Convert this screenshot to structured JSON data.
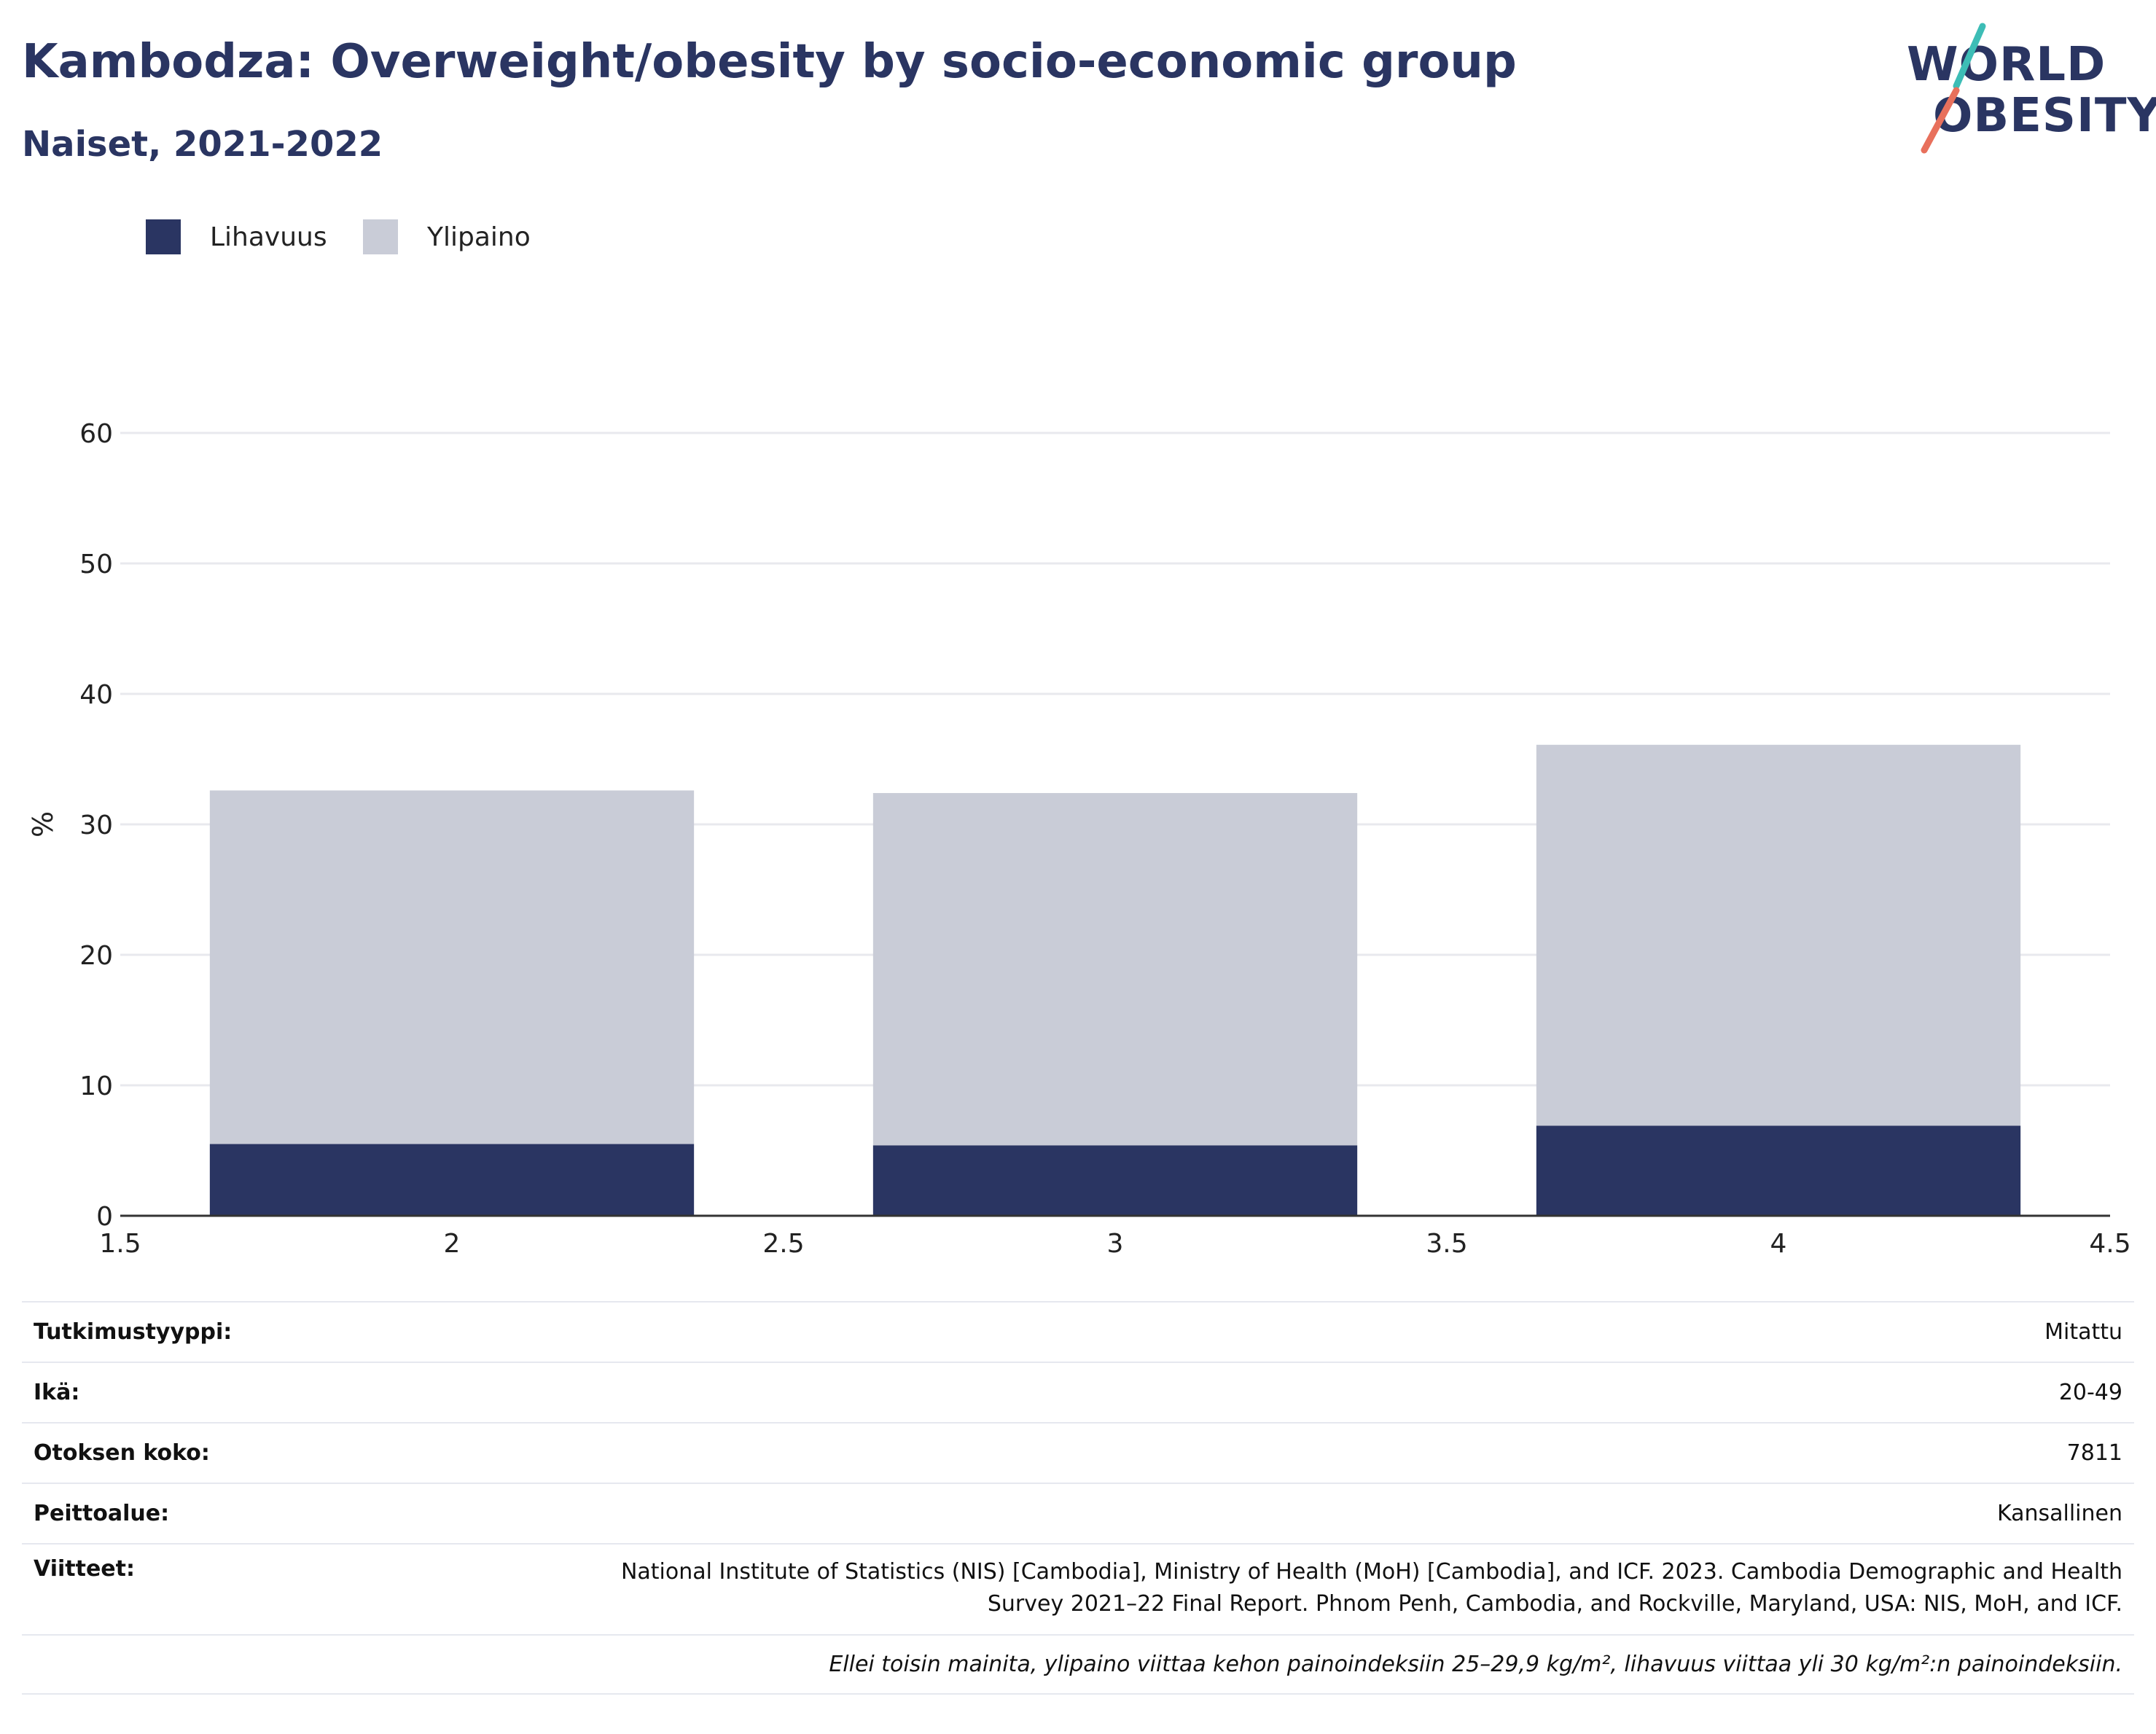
{
  "header": {
    "title": "Kambodza: Overweight/obesity by socio-economic group",
    "subtitle": "Naiset, 2021-2022"
  },
  "logo": {
    "line1": "WORLD",
    "line2": "OBESITY"
  },
  "colors": {
    "obesity": "#2a3562",
    "overweight": "#c9ccd7",
    "accent_teal": "#3dbdb6",
    "accent_coral": "#e8705c"
  },
  "chart_data": {
    "type": "bar",
    "stacked": true,
    "x": [
      2,
      3,
      4
    ],
    "series": [
      {
        "name": "Lihavuus",
        "values": [
          5.5,
          5.4,
          6.9
        ]
      },
      {
        "name": "Ylipaino",
        "values": [
          27.1,
          27.0,
          29.2
        ]
      }
    ],
    "xlim": [
      1.5,
      4.5
    ],
    "xticks": [
      "1.5",
      "2",
      "2.5",
      "3",
      "3.5",
      "4",
      "4.5"
    ],
    "ylim": [
      0,
      60
    ],
    "yticks": [
      "0",
      "10",
      "20",
      "30",
      "40",
      "50",
      "60"
    ],
    "ylabel": "%",
    "xlabel": "",
    "grid": true,
    "legend_position": "top-left"
  },
  "info": {
    "rows": [
      {
        "label": "Tutkimustyyppi:",
        "value": "Mitattu"
      },
      {
        "label": "Ikä:",
        "value": "20-49"
      },
      {
        "label": "Otoksen koko:",
        "value": "7811"
      },
      {
        "label": "Peittoalue:",
        "value": "Kansallinen"
      }
    ],
    "reference_label": "Viitteet:",
    "reference": "National Institute of Statistics (NIS) [Cambodia], Ministry of Health (MoH) [Cambodia], and ICF. 2023. Cambodia Demographic and Health Survey 2021–22 Final Report. Phnom Penh, Cambodia, and Rockville, Maryland, USA: NIS, MoH, and ICF.",
    "note": "Ellei toisin mainita, ylipaino viittaa kehon painoindeksiin 25–29,9 kg/m², lihavuus viittaa yli 30 kg/m²:n painoindeksiin."
  }
}
